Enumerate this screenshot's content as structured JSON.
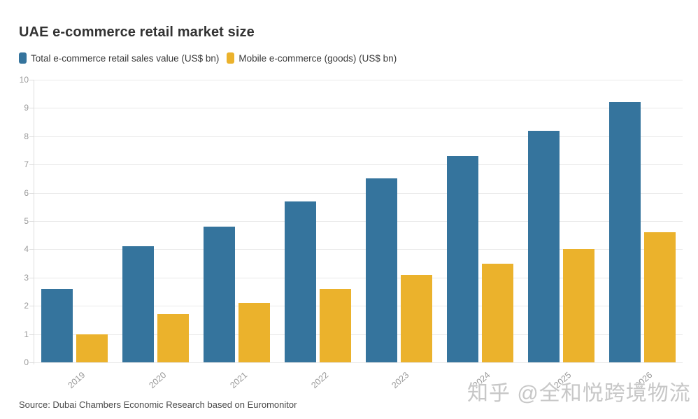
{
  "title": "UAE e-commerce retail market size",
  "legend": {
    "items": [
      {
        "label": "Total e-commerce retail sales value (US$ bn)",
        "color": "#35749d"
      },
      {
        "label": "Mobile e-commerce (goods) (US$ bn)",
        "color": "#ebb22c"
      }
    ]
  },
  "chart_data": {
    "type": "bar",
    "categories": [
      "2019",
      "2020",
      "2021",
      "2022",
      "2023",
      "2024",
      "2025",
      "2026"
    ],
    "series": [
      {
        "name": "Total e-commerce retail sales value (US$ bn)",
        "color": "#35749d",
        "values": [
          2.6,
          4.1,
          4.8,
          5.7,
          6.5,
          7.3,
          8.2,
          9.2
        ]
      },
      {
        "name": "Mobile e-commerce (goods) (US$ bn)",
        "color": "#ebb22c",
        "values": [
          1.0,
          1.7,
          2.1,
          2.6,
          3.1,
          3.5,
          4.0,
          4.6
        ]
      }
    ],
    "title": "UAE e-commerce retail market size",
    "xlabel": "",
    "ylabel": "",
    "ylim": [
      0,
      10
    ],
    "yticks": [
      0,
      1,
      2,
      3,
      4,
      5,
      6,
      7,
      8,
      9,
      10
    ],
    "grid": true,
    "legend_position": "top-left"
  },
  "source": "Source: Dubai Chambers Economic Research based on Euromonitor",
  "watermark": "知乎 @全和悦跨境物流",
  "colors": {
    "total_series": "#35749d",
    "mobile_series": "#ebb22c",
    "gridline": "#e9e9e9",
    "axis_text": "#999999",
    "title_text": "#333333",
    "source_text": "#4a4a4a",
    "watermark_text": "#c7c7c7",
    "background": "#ffffff"
  }
}
